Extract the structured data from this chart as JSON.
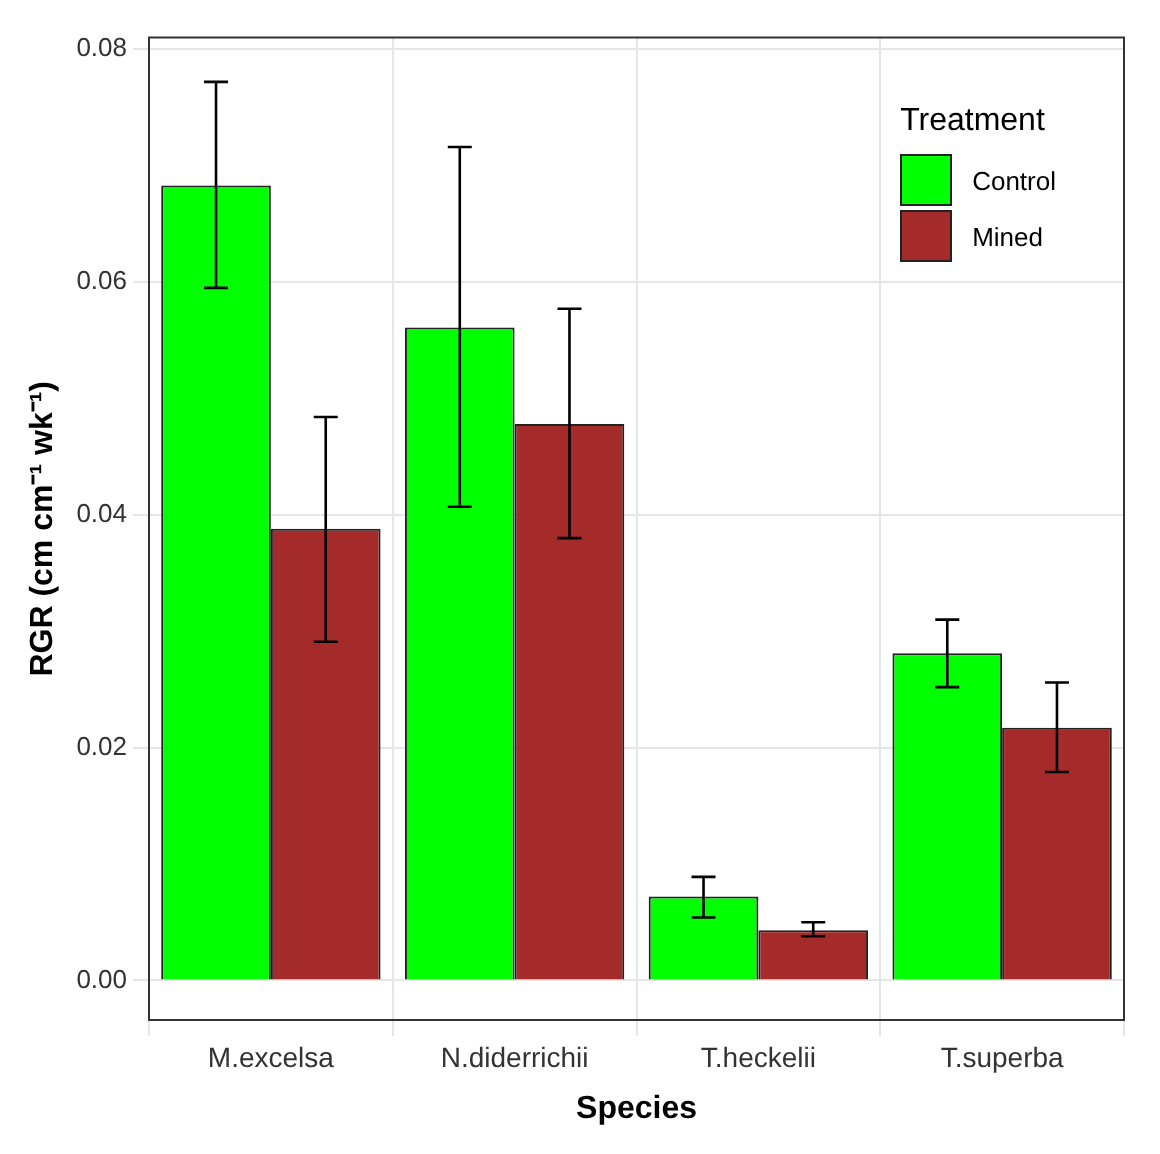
{
  "chart_data": {
    "type": "bar",
    "xlabel": "Species",
    "ylabel": "RGR (cm cm⁻¹ wk⁻¹)",
    "legend_title": "Treatment",
    "categories": [
      "M.excelsa",
      "N.diderrichii",
      "T.heckelii",
      "T.superba"
    ],
    "series": [
      {
        "name": "Control",
        "color": "#00ff00",
        "values": [
          0.0683,
          0.0561,
          0.0072,
          0.0281
        ],
        "errors": [
          [
            0.0595,
            0.0772
          ],
          [
            0.0407,
            0.0716
          ],
          [
            0.0054,
            0.0089
          ],
          [
            0.0252,
            0.031
          ]
        ]
      },
      {
        "name": "Mined",
        "color": "#a52a2a",
        "values": [
          0.0388,
          0.0478,
          0.0043,
          0.0217
        ],
        "errors": [
          [
            0.0291,
            0.0484
          ],
          [
            0.038,
            0.0577
          ],
          [
            0.0038,
            0.005
          ],
          [
            0.0179,
            0.0256
          ]
        ]
      }
    ],
    "ylim": [
      -0.0034,
      0.081
    ],
    "yticks": [
      {
        "value": 0,
        "label": "0.00"
      },
      {
        "value": 0.02,
        "label": "0.02"
      },
      {
        "value": 0.04,
        "label": "0.04"
      },
      {
        "value": 0.06,
        "label": "0.06"
      },
      {
        "value": 0.08,
        "label": "0.08"
      }
    ],
    "grid": true,
    "legend": "top right"
  }
}
